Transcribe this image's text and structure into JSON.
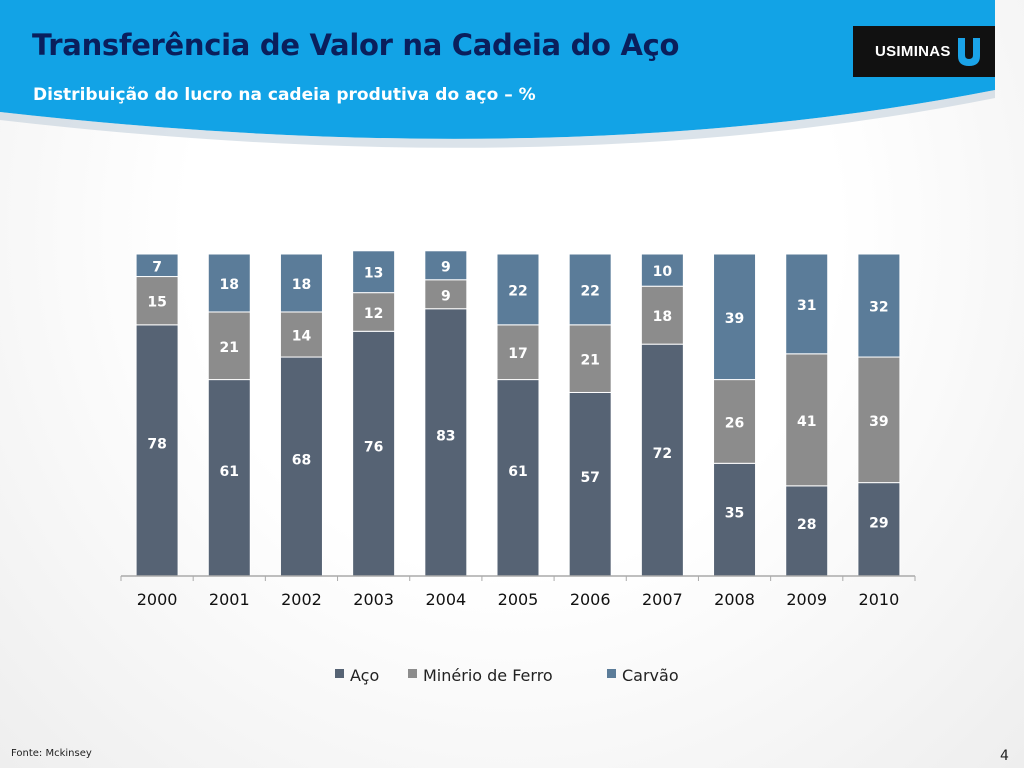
{
  "slide": {
    "title": "Transferência de Valor na Cadeia do Aço",
    "subtitle": "Distribuição do lucro na cadeia produtiva do aço – %",
    "logo_text": "USIMINAS",
    "source": "Fonte: Mckinsey",
    "page_number": "4"
  },
  "colors": {
    "header_blue": "#12a3e6",
    "title": "#0a1f5c",
    "aco": "#566374",
    "minerio": "#8c8c8c",
    "carvao": "#5b7c99",
    "label": "#ffffff"
  },
  "chart_data": {
    "type": "bar",
    "stacked": true,
    "percent": true,
    "title": "",
    "xlabel": "",
    "ylabel": "",
    "ylim": [
      0,
      100
    ],
    "grid": false,
    "legend_position": "bottom",
    "categories": [
      "2000",
      "2001",
      "2002",
      "2003",
      "2004",
      "2005",
      "2006",
      "2007",
      "2008",
      "2009",
      "2010"
    ],
    "series": [
      {
        "name": "Aço",
        "color": "#566374",
        "values": [
          78,
          61,
          68,
          76,
          83,
          61,
          57,
          72,
          35,
          28,
          29
        ]
      },
      {
        "name": "Minério de Ferro",
        "color": "#8c8c8c",
        "values": [
          15,
          21,
          14,
          12,
          9,
          17,
          21,
          18,
          26,
          41,
          39
        ]
      },
      {
        "name": "Carvão",
        "color": "#5b7c99",
        "values": [
          7,
          18,
          18,
          13,
          9,
          22,
          22,
          10,
          39,
          31,
          32
        ]
      }
    ]
  }
}
